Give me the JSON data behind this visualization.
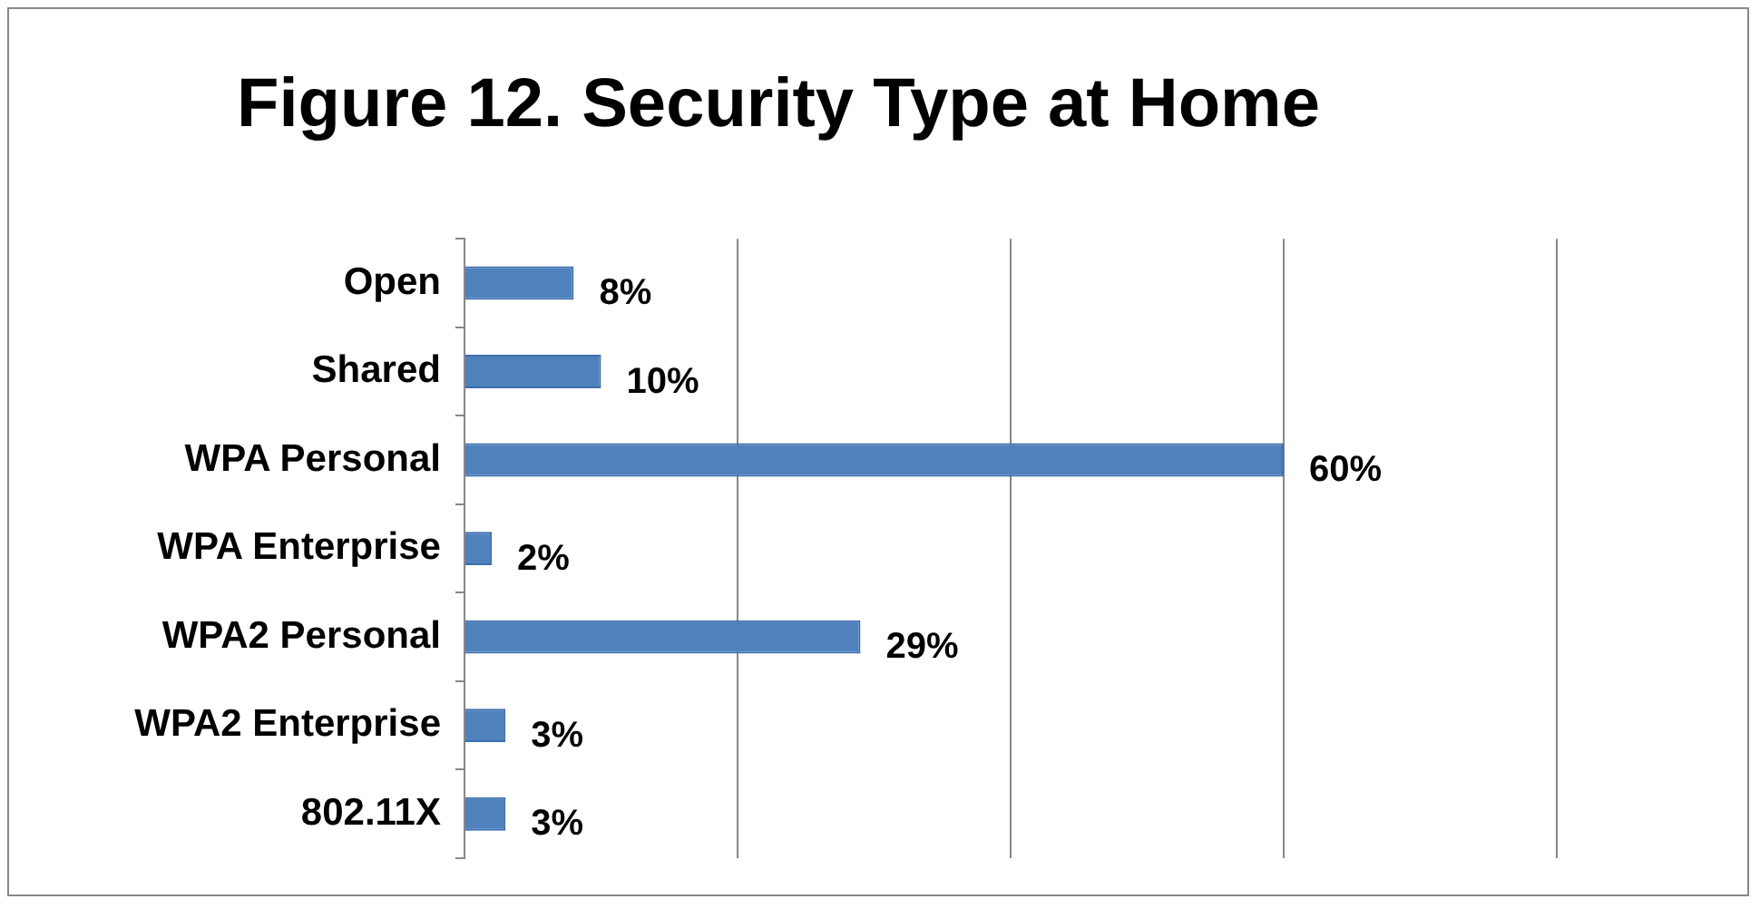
{
  "chart_data": {
    "type": "bar",
    "orientation": "horizontal",
    "title": "Figure 12. Security Type at Home",
    "categories": [
      "Open",
      "Shared",
      "WPA Personal",
      "WPA Enterprise",
      "WPA2 Personal",
      "WPA2 Enterprise",
      "802.11X"
    ],
    "values": [
      8,
      10,
      60,
      2,
      29,
      3,
      3
    ],
    "value_labels": [
      "8%",
      "10%",
      "60%",
      "2%",
      "29%",
      "3%",
      "3%"
    ],
    "color": "#4f81bd",
    "xlim": [
      0,
      80
    ],
    "grid": "x",
    "legend": false,
    "tick_labels": "y"
  }
}
